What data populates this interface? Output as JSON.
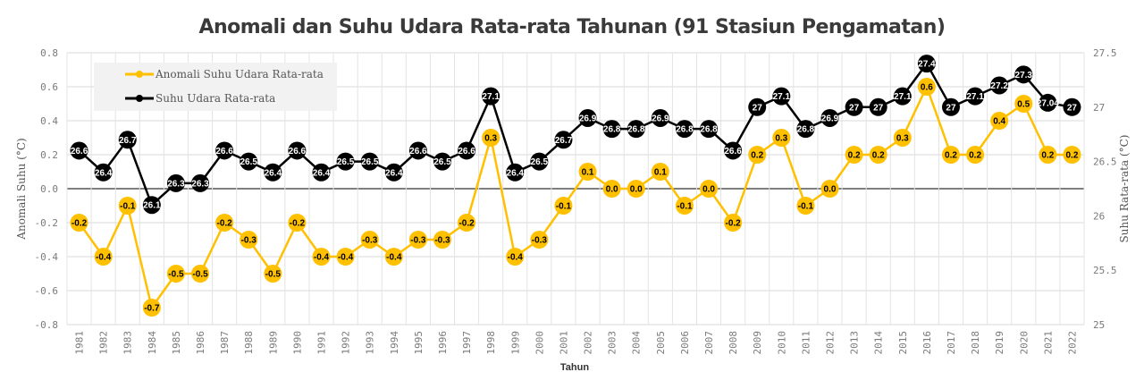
{
  "chart_data": {
    "type": "line",
    "title": "Anomali dan Suhu Udara Rata-rata Tahunan (91 Stasiun Pengamatan)",
    "xlabel": "Tahun",
    "ylabel_left": "Anomali Suhu (°C)",
    "ylabel_right": "Suhu Rata-rata (°C)",
    "ylim_left": [
      -0.8,
      0.8
    ],
    "ylim_right": [
      25,
      27.5
    ],
    "yticks_left": [
      "0.8",
      "0.6",
      "0.4",
      "0.2",
      "0.0",
      "-0.2",
      "-0.4",
      "-0.6",
      "-0.8"
    ],
    "yticks_right": [
      "27.5",
      "27",
      "26.5",
      "26",
      "25.5",
      "25"
    ],
    "grid": true,
    "legend_position": "top-left",
    "categories": [
      "1981",
      "1982",
      "1983",
      "1984",
      "1985",
      "1986",
      "1987",
      "1988",
      "1989",
      "1990",
      "1991",
      "1992",
      "1993",
      "1994",
      "1995",
      "1996",
      "1997",
      "1998",
      "1999",
      "2000",
      "2001",
      "2002",
      "2003",
      "2004",
      "2005",
      "2006",
      "2007",
      "2008",
      "2009",
      "2010",
      "2011",
      "2012",
      "2013",
      "2014",
      "2015",
      "2016",
      "2017",
      "2018",
      "2019",
      "2020",
      "2021",
      "2022"
    ],
    "series": [
      {
        "name": "Anomali Suhu Udara Rata-rata",
        "axis": "left",
        "color": "#FFC000",
        "values": [
          -0.2,
          -0.4,
          -0.1,
          -0.7,
          -0.5,
          -0.5,
          -0.2,
          -0.3,
          -0.5,
          -0.2,
          -0.4,
          -0.4,
          -0.3,
          -0.4,
          -0.3,
          -0.3,
          -0.2,
          0.3,
          -0.4,
          -0.3,
          -0.1,
          0.1,
          0.0,
          0.0,
          0.1,
          -0.1,
          0.0,
          -0.2,
          0.2,
          0.3,
          -0.1,
          0.0,
          0.2,
          0.2,
          0.3,
          0.6,
          0.2,
          0.2,
          0.4,
          0.5,
          0.2,
          0.2
        ],
        "labels": [
          "-0.2",
          "-0.4",
          "-0.1",
          "-0.7",
          "-0.5",
          "-0.5",
          "-0.2",
          "-0.3",
          "-0.5",
          "-0.2",
          "-0.4",
          "-0.4",
          "-0.3",
          "-0.4",
          "-0.3",
          "-0.3",
          "-0.2",
          "0.3",
          "-0.4",
          "-0.3",
          "-0.1",
          "0.1",
          "0.0",
          "0.0",
          "0.1",
          "-0.1",
          "0.0",
          "-0.2",
          "0.2",
          "0.3",
          "-0.1",
          "0.0",
          "0.2",
          "0.2",
          "0.3",
          "0.6",
          "0.2",
          "0.2",
          "0.4",
          "0.5",
          "0.2",
          "0.2"
        ]
      },
      {
        "name": "Suhu Udara Rata-rata",
        "axis": "right",
        "color": "#000000",
        "values": [
          26.6,
          26.4,
          26.7,
          26.1,
          26.3,
          26.3,
          26.6,
          26.5,
          26.4,
          26.6,
          26.4,
          26.5,
          26.5,
          26.4,
          26.6,
          26.5,
          26.6,
          27.1,
          26.4,
          26.5,
          26.7,
          26.9,
          26.8,
          26.8,
          26.9,
          26.8,
          26.8,
          26.6,
          27.0,
          27.1,
          26.8,
          26.9,
          27.0,
          27.0,
          27.1,
          27.4,
          27.0,
          27.1,
          27.2,
          27.3,
          27.04,
          27.0
        ],
        "labels": [
          "26.6",
          "26.4",
          "26.7",
          "26.1",
          "26.3",
          "26.3",
          "26.6",
          "26.5",
          "26.4",
          "26.6",
          "26.4",
          "26.5",
          "26.5",
          "26.4",
          "26.6",
          "26.5",
          "26.6",
          "27.1",
          "26.4",
          "26.5",
          "26.7",
          "26.9",
          "26.8",
          "26.8",
          "26.9",
          "26.8",
          "26.8",
          "26.6",
          "27",
          "27.1",
          "26.8",
          "26.9",
          "27",
          "27",
          "27.1",
          "27.4",
          "27",
          "27.1",
          "27.2",
          "27.3",
          "27.04",
          "27"
        ]
      }
    ]
  }
}
